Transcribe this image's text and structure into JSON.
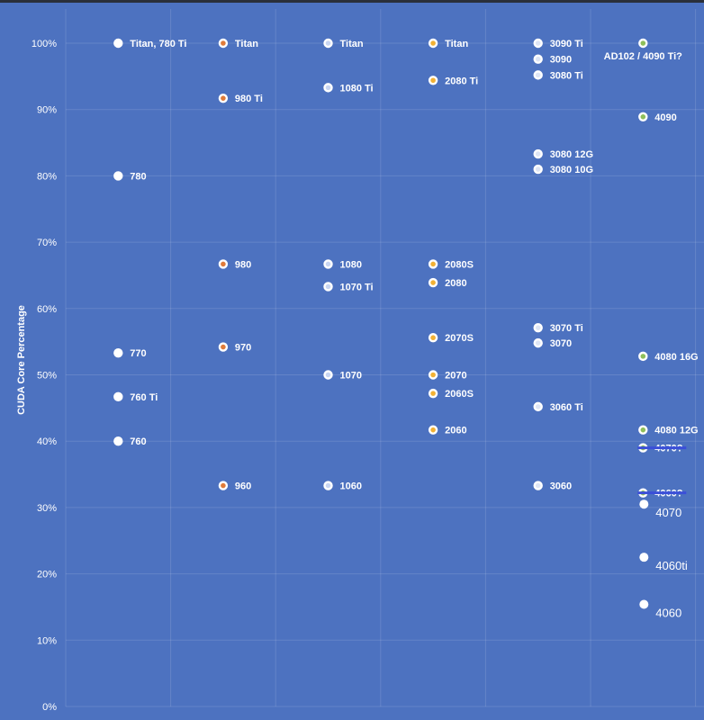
{
  "chart_data": {
    "type": "scatter",
    "title": "",
    "xlabel": "",
    "ylabel": "CUDA Core Percentage",
    "ylim": [
      0,
      100
    ],
    "yticks": [
      "0%",
      "10%",
      "20%",
      "30%",
      "40%",
      "50%",
      "60%",
      "70%",
      "80%",
      "90%",
      "100%"
    ],
    "grid": true,
    "series": [
      {
        "name": "",
        "x": 1,
        "color": "#ffffff",
        "points": [
          {
            "y": 100,
            "label": "Titan, 780 Ti"
          },
          {
            "y": 80,
            "label": "780"
          },
          {
            "y": 53.3,
            "label": "770"
          },
          {
            "y": 46.7,
            "label": "760 Ti"
          },
          {
            "y": 40,
            "label": "760"
          }
        ]
      },
      {
        "name": "",
        "x": 2,
        "color": "#e07b39",
        "points": [
          {
            "y": 100,
            "label": "Titan"
          },
          {
            "y": 91.7,
            "label": "980 Ti"
          },
          {
            "y": 66.7,
            "label": "980"
          },
          {
            "y": 54.2,
            "label": "970"
          },
          {
            "y": 33.3,
            "label": "960"
          }
        ]
      },
      {
        "name": "",
        "x": 3,
        "color": "#c9d6f2",
        "points": [
          {
            "y": 100,
            "label": "Titan"
          },
          {
            "y": 93.3,
            "label": "1080 Ti"
          },
          {
            "y": 66.7,
            "label": "1080"
          },
          {
            "y": 63.3,
            "label": "1070 Ti"
          },
          {
            "y": 50,
            "label": "1070"
          },
          {
            "y": 33.3,
            "label": "1060"
          }
        ]
      },
      {
        "name": "",
        "x": 4,
        "color": "#f2b134",
        "points": [
          {
            "y": 100,
            "label": "Titan"
          },
          {
            "y": 94.4,
            "label": "2080 Ti"
          },
          {
            "y": 66.7,
            "label": "2080S"
          },
          {
            "y": 63.9,
            "label": "2080"
          },
          {
            "y": 55.6,
            "label": "2070S"
          },
          {
            "y": 50,
            "label": "2070"
          },
          {
            "y": 47.2,
            "label": "2060S"
          },
          {
            "y": 41.7,
            "label": "2060"
          }
        ]
      },
      {
        "name": "",
        "x": 5,
        "color": "#dfe6f5",
        "points": [
          {
            "y": 100,
            "label": "3090 Ti"
          },
          {
            "y": 97.6,
            "label": "3090"
          },
          {
            "y": 95.2,
            "label": "3080 Ti"
          },
          {
            "y": 83.3,
            "label": "3080 12G"
          },
          {
            "y": 81,
            "label": "3080 10G"
          },
          {
            "y": 57.1,
            "label": "3070 Ti"
          },
          {
            "y": 54.8,
            "label": "3070"
          },
          {
            "y": 45.2,
            "label": "3060 Ti"
          },
          {
            "y": 33.3,
            "label": "3060"
          }
        ]
      },
      {
        "name": "",
        "x": 6,
        "color": "#8fbf5a",
        "points": [
          {
            "y": 100,
            "label": "AD102 / 4090 Ti?"
          },
          {
            "y": 88.9,
            "label": "4090"
          },
          {
            "y": 52.8,
            "label": "4080 16G"
          },
          {
            "y": 41.7,
            "label": "4080 12G"
          },
          {
            "y": 39,
            "label": "4070?",
            "struck": true
          },
          {
            "y": 32.2,
            "label": "4060?",
            "struck": true
          }
        ]
      },
      {
        "name": "",
        "x": 6,
        "color": "#ffffff",
        "plain": true,
        "points": [
          {
            "y": 30.5,
            "label": "4070"
          },
          {
            "y": 22.5,
            "label": "4060ti"
          },
          {
            "y": 15.4,
            "label": "4060"
          }
        ]
      }
    ]
  }
}
